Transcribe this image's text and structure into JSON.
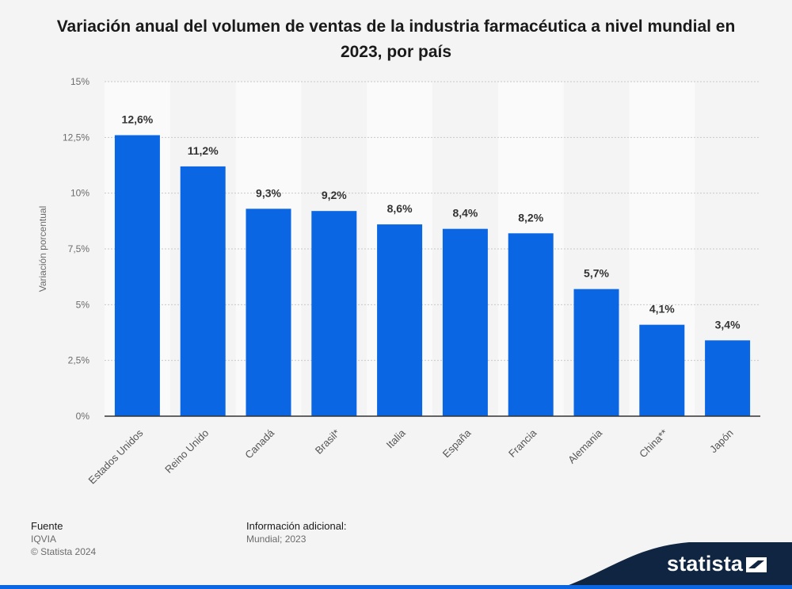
{
  "title": "Variación anual del volumen de ventas de la industria farmacéutica a nivel mundial en 2023, por país",
  "chart_data": {
    "type": "bar",
    "categories": [
      "Estados Unidos",
      "Reino Unido",
      "Canadá",
      "Brasil*",
      "Italia",
      "España",
      "Francia",
      "Alemania",
      "China**",
      "Japón"
    ],
    "values": [
      12.6,
      11.2,
      9.3,
      9.2,
      8.6,
      8.4,
      8.2,
      5.7,
      4.1,
      3.4
    ],
    "value_labels": [
      "12,6%",
      "11,2%",
      "9,3%",
      "9,2%",
      "8,6%",
      "8,4%",
      "8,2%",
      "5,7%",
      "4,1%",
      "3,4%"
    ],
    "ylabel": "Variación porcentual",
    "ylim": [
      0,
      15
    ],
    "yticks": [
      0,
      2.5,
      5,
      7.5,
      10,
      12.5,
      15
    ],
    "ytick_labels": [
      "0%",
      "2,5%",
      "5%",
      "7,5%",
      "10%",
      "12,5%",
      "15%"
    ],
    "bar_color": "#0b66e4",
    "grid": true
  },
  "footer": {
    "source_label": "Fuente",
    "source_value": "IQVIA",
    "copyright": "© Statista 2024",
    "info_label": "Información adicional:",
    "info_value": "Mundial; 2023"
  },
  "brand": {
    "name": "statista",
    "band_color": "#0f2541",
    "accent_color": "#0b66e4"
  }
}
